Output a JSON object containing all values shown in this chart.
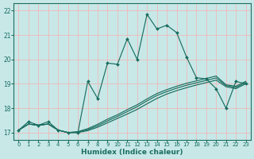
{
  "xlabel": "Humidex (Indice chaleur)",
  "bg_color": "#c8e8e8",
  "grid_color": "#f0b8b8",
  "line_color": "#1a6e60",
  "xlim": [
    -0.5,
    23.5
  ],
  "ylim": [
    16.7,
    22.3
  ],
  "xticks": [
    0,
    1,
    2,
    3,
    4,
    5,
    6,
    7,
    8,
    9,
    10,
    11,
    12,
    13,
    14,
    15,
    16,
    17,
    18,
    19,
    20,
    21,
    22,
    23
  ],
  "yticks": [
    17,
    18,
    19,
    20,
    21,
    22
  ],
  "main_x": [
    0,
    1,
    2,
    3,
    4,
    5,
    6,
    7,
    8,
    9,
    10,
    11,
    12,
    13,
    14,
    15,
    16,
    17,
    18,
    19,
    20,
    21,
    22,
    23
  ],
  "main_y": [
    17.1,
    17.45,
    17.3,
    17.45,
    17.1,
    17.0,
    17.0,
    19.1,
    18.4,
    19.85,
    19.8,
    20.85,
    20.0,
    21.85,
    21.25,
    21.4,
    21.1,
    20.1,
    19.25,
    19.2,
    18.8,
    18.0,
    19.1,
    19.0
  ],
  "smooth1_x": [
    0,
    1,
    2,
    3,
    4,
    5,
    6,
    7,
    8,
    9,
    10,
    11,
    12,
    13,
    14,
    15,
    16,
    17,
    18,
    19,
    20,
    21,
    22,
    23
  ],
  "smooth1_y": [
    17.1,
    17.35,
    17.3,
    17.35,
    17.1,
    17.0,
    17.0,
    17.08,
    17.22,
    17.4,
    17.58,
    17.76,
    17.95,
    18.18,
    18.4,
    18.58,
    18.72,
    18.84,
    18.95,
    19.05,
    19.15,
    18.88,
    18.8,
    19.0
  ],
  "smooth2_x": [
    0,
    1,
    2,
    3,
    4,
    5,
    6,
    7,
    8,
    9,
    10,
    11,
    12,
    13,
    14,
    15,
    16,
    17,
    18,
    19,
    20,
    21,
    22,
    23
  ],
  "smooth2_y": [
    17.1,
    17.35,
    17.3,
    17.35,
    17.1,
    17.0,
    17.02,
    17.12,
    17.28,
    17.48,
    17.66,
    17.86,
    18.06,
    18.3,
    18.52,
    18.68,
    18.82,
    18.94,
    19.04,
    19.14,
    19.24,
    18.93,
    18.85,
    19.05
  ],
  "smooth3_x": [
    0,
    1,
    2,
    3,
    4,
    5,
    6,
    7,
    8,
    9,
    10,
    11,
    12,
    13,
    14,
    15,
    16,
    17,
    18,
    19,
    20,
    21,
    22,
    23
  ],
  "smooth3_y": [
    17.1,
    17.35,
    17.3,
    17.35,
    17.1,
    17.0,
    17.04,
    17.16,
    17.34,
    17.55,
    17.73,
    17.94,
    18.14,
    18.38,
    18.6,
    18.76,
    18.9,
    19.02,
    19.12,
    19.22,
    19.32,
    18.96,
    18.9,
    19.1
  ]
}
